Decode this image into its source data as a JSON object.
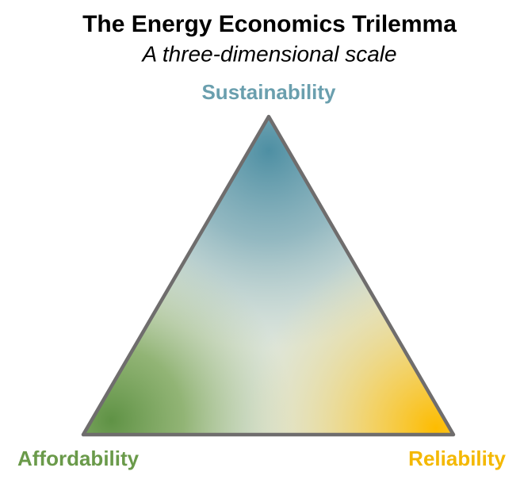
{
  "header": {
    "title": "The Energy Economics Trilemma",
    "subtitle": "A three-dimensional scale"
  },
  "nodes": [
    {
      "label": "Sustainability"
    },
    {
      "label": "Affordability"
    },
    {
      "label": "Reliability"
    }
  ]
}
